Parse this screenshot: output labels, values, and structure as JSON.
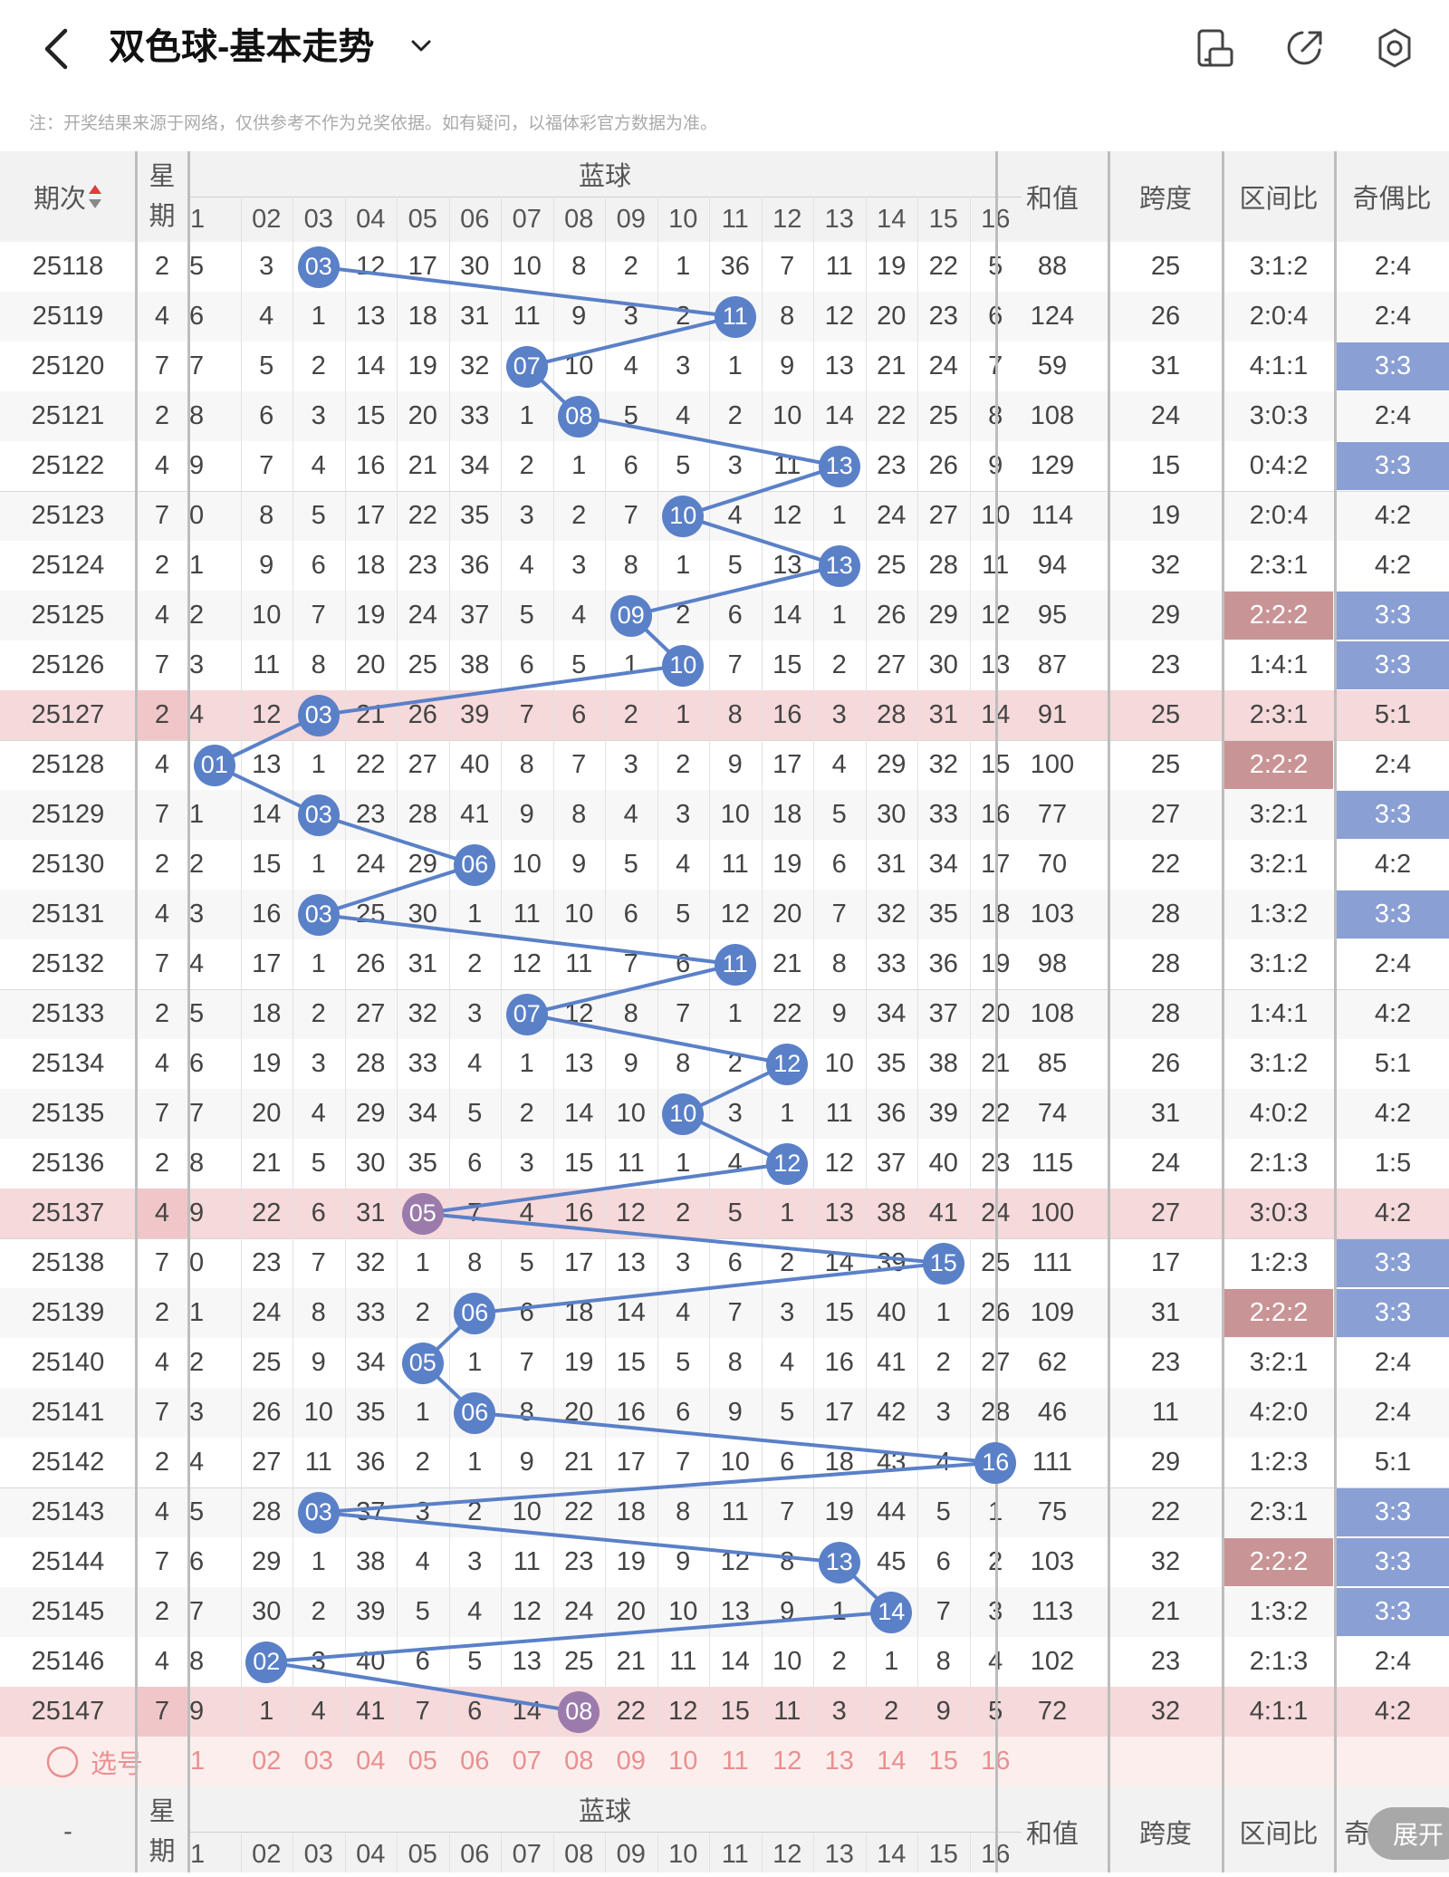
{
  "header": {
    "title": "双色球-基本走势",
    "back_icon": "chevron-left-icon",
    "dropdown_icon": "chevron-down-icon",
    "icons": [
      "phone-rotate-icon",
      "share-icon",
      "settings-icon"
    ]
  },
  "notice": "注：开奖结果来源于网络，仅供参考不作为兑奖依据。如有疑问，以福体彩官方数据为准。",
  "table": {
    "col_period": "期次",
    "col_week": "星期",
    "col_blue_group": "蓝球",
    "blue_numbers": [
      "1",
      "02",
      "03",
      "04",
      "05",
      "06",
      "07",
      "08",
      "09",
      "10",
      "11",
      "12",
      "13",
      "14",
      "15",
      "16"
    ],
    "col_sum": "和值",
    "col_span": "跨度",
    "col_zone": "区间比",
    "col_odd": "奇偶比",
    "rows": [
      {
        "period": "25118",
        "week": "2",
        "miss": [
          "5",
          "3",
          "03",
          "12",
          "17",
          "30",
          "10",
          "8",
          "2",
          "1",
          "36",
          "7",
          "11",
          "19",
          "22",
          "5"
        ],
        "hit": 3,
        "sum": "88",
        "span": "25",
        "zone": "3:1:2",
        "odd": "2:4"
      },
      {
        "period": "25119",
        "week": "4",
        "miss": [
          "6",
          "4",
          "1",
          "13",
          "18",
          "31",
          "11",
          "9",
          "3",
          "2",
          "11",
          "8",
          "12",
          "20",
          "23",
          "6"
        ],
        "hit": 11,
        "sum": "124",
        "span": "26",
        "zone": "2:0:4",
        "odd": "2:4"
      },
      {
        "period": "25120",
        "week": "7",
        "miss": [
          "7",
          "5",
          "2",
          "14",
          "19",
          "32",
          "07",
          "10",
          "4",
          "3",
          "1",
          "9",
          "13",
          "21",
          "24",
          "7"
        ],
        "hit": 7,
        "sum": "59",
        "span": "31",
        "zone": "4:1:1",
        "odd": "3:3"
      },
      {
        "period": "25121",
        "week": "2",
        "miss": [
          "8",
          "6",
          "3",
          "15",
          "20",
          "33",
          "1",
          "08",
          "5",
          "4",
          "2",
          "10",
          "14",
          "22",
          "25",
          "8"
        ],
        "hit": 8,
        "sum": "108",
        "span": "24",
        "zone": "3:0:3",
        "odd": "2:4"
      },
      {
        "period": "25122",
        "week": "4",
        "miss": [
          "9",
          "7",
          "4",
          "16",
          "21",
          "34",
          "2",
          "1",
          "6",
          "5",
          "3",
          "11",
          "13",
          "23",
          "26",
          "9"
        ],
        "hit": 13,
        "sum": "129",
        "span": "15",
        "zone": "0:4:2",
        "odd": "3:3"
      },
      {
        "period": "25123",
        "week": "7",
        "miss": [
          "0",
          "8",
          "5",
          "17",
          "22",
          "35",
          "3",
          "2",
          "7",
          "10",
          "4",
          "12",
          "1",
          "24",
          "27",
          "10"
        ],
        "hit": 10,
        "sum": "114",
        "span": "19",
        "zone": "2:0:4",
        "odd": "4:2"
      },
      {
        "period": "25124",
        "week": "2",
        "miss": [
          "1",
          "9",
          "6",
          "18",
          "23",
          "36",
          "4",
          "3",
          "8",
          "1",
          "5",
          "13",
          "13",
          "25",
          "28",
          "11"
        ],
        "hit": 13,
        "sum": "94",
        "span": "32",
        "zone": "2:3:1",
        "odd": "4:2"
      },
      {
        "period": "25125",
        "week": "4",
        "miss": [
          "2",
          "10",
          "7",
          "19",
          "24",
          "37",
          "5",
          "4",
          "09",
          "2",
          "6",
          "14",
          "1",
          "26",
          "29",
          "12"
        ],
        "hit": 9,
        "sum": "95",
        "span": "29",
        "zone": "2:2:2",
        "odd": "3:3"
      },
      {
        "period": "25126",
        "week": "7",
        "miss": [
          "3",
          "11",
          "8",
          "20",
          "25",
          "38",
          "6",
          "5",
          "1",
          "10",
          "7",
          "15",
          "2",
          "27",
          "30",
          "13"
        ],
        "hit": 10,
        "sum": "87",
        "span": "23",
        "zone": "1:4:1",
        "odd": "3:3"
      },
      {
        "period": "25127",
        "week": "2",
        "miss": [
          "4",
          "12",
          "03",
          "21",
          "26",
          "39",
          "7",
          "6",
          "2",
          "1",
          "8",
          "16",
          "3",
          "28",
          "31",
          "14"
        ],
        "hit": 3,
        "sum": "91",
        "span": "25",
        "zone": "2:3:1",
        "odd": "5:1"
      },
      {
        "period": "25128",
        "week": "4",
        "miss": [
          "01",
          "13",
          "1",
          "22",
          "27",
          "40",
          "8",
          "7",
          "3",
          "2",
          "9",
          "17",
          "4",
          "29",
          "32",
          "15"
        ],
        "hit": 1,
        "sum": "100",
        "span": "25",
        "zone": "2:2:2",
        "odd": "2:4"
      },
      {
        "period": "25129",
        "week": "7",
        "miss": [
          "1",
          "14",
          "03",
          "23",
          "28",
          "41",
          "9",
          "8",
          "4",
          "3",
          "10",
          "18",
          "5",
          "30",
          "33",
          "16"
        ],
        "hit": 3,
        "sum": "77",
        "span": "27",
        "zone": "3:2:1",
        "odd": "3:3"
      },
      {
        "period": "25130",
        "week": "2",
        "miss": [
          "2",
          "15",
          "1",
          "24",
          "29",
          "06",
          "10",
          "9",
          "5",
          "4",
          "11",
          "19",
          "6",
          "31",
          "34",
          "17"
        ],
        "hit": 6,
        "sum": "70",
        "span": "22",
        "zone": "3:2:1",
        "odd": "4:2"
      },
      {
        "period": "25131",
        "week": "4",
        "miss": [
          "3",
          "16",
          "03",
          "25",
          "30",
          "1",
          "11",
          "10",
          "6",
          "5",
          "12",
          "20",
          "7",
          "32",
          "35",
          "18"
        ],
        "hit": 3,
        "sum": "103",
        "span": "28",
        "zone": "1:3:2",
        "odd": "3:3"
      },
      {
        "period": "25132",
        "week": "7",
        "miss": [
          "4",
          "17",
          "1",
          "26",
          "31",
          "2",
          "12",
          "11",
          "7",
          "6",
          "11",
          "21",
          "8",
          "33",
          "36",
          "19"
        ],
        "hit": 11,
        "sum": "98",
        "span": "28",
        "zone": "3:1:2",
        "odd": "2:4"
      },
      {
        "period": "25133",
        "week": "2",
        "miss": [
          "5",
          "18",
          "2",
          "27",
          "32",
          "3",
          "07",
          "12",
          "8",
          "7",
          "1",
          "22",
          "9",
          "34",
          "37",
          "20"
        ],
        "hit": 7,
        "sum": "108",
        "span": "28",
        "zone": "1:4:1",
        "odd": "4:2"
      },
      {
        "period": "25134",
        "week": "4",
        "miss": [
          "6",
          "19",
          "3",
          "28",
          "33",
          "4",
          "1",
          "13",
          "9",
          "8",
          "2",
          "12",
          "10",
          "35",
          "38",
          "21"
        ],
        "hit": 12,
        "sum": "85",
        "span": "26",
        "zone": "3:1:2",
        "odd": "5:1"
      },
      {
        "period": "25135",
        "week": "7",
        "miss": [
          "7",
          "20",
          "4",
          "29",
          "34",
          "5",
          "2",
          "14",
          "10",
          "10",
          "3",
          "1",
          "11",
          "36",
          "39",
          "22"
        ],
        "hit": 10,
        "sum": "74",
        "span": "31",
        "zone": "4:0:2",
        "odd": "4:2"
      },
      {
        "period": "25136",
        "week": "2",
        "miss": [
          "8",
          "21",
          "5",
          "30",
          "35",
          "6",
          "3",
          "15",
          "11",
          "1",
          "4",
          "12",
          "12",
          "37",
          "40",
          "23"
        ],
        "hit": 12,
        "sum": "115",
        "span": "24",
        "zone": "2:1:3",
        "odd": "1:5"
      },
      {
        "period": "25137",
        "week": "4",
        "miss": [
          "9",
          "22",
          "6",
          "31",
          "05",
          "7",
          "4",
          "16",
          "12",
          "2",
          "5",
          "1",
          "13",
          "38",
          "41",
          "24"
        ],
        "hit": 5,
        "sum": "100",
        "span": "27",
        "zone": "3:0:3",
        "odd": "4:2"
      },
      {
        "period": "25138",
        "week": "7",
        "miss": [
          "0",
          "23",
          "7",
          "32",
          "1",
          "8",
          "5",
          "17",
          "13",
          "3",
          "6",
          "2",
          "14",
          "39",
          "15",
          "25"
        ],
        "hit": 15,
        "sum": "111",
        "span": "17",
        "zone": "1:2:3",
        "odd": "3:3"
      },
      {
        "period": "25139",
        "week": "2",
        "miss": [
          "1",
          "24",
          "8",
          "33",
          "2",
          "06",
          "6",
          "18",
          "14",
          "4",
          "7",
          "3",
          "15",
          "40",
          "1",
          "26"
        ],
        "hit": 6,
        "sum": "109",
        "span": "31",
        "zone": "2:2:2",
        "odd": "3:3"
      },
      {
        "period": "25140",
        "week": "4",
        "miss": [
          "2",
          "25",
          "9",
          "34",
          "05",
          "1",
          "7",
          "19",
          "15",
          "5",
          "8",
          "4",
          "16",
          "41",
          "2",
          "27"
        ],
        "hit": 5,
        "sum": "62",
        "span": "23",
        "zone": "3:2:1",
        "odd": "2:4"
      },
      {
        "period": "25141",
        "week": "7",
        "miss": [
          "3",
          "26",
          "10",
          "35",
          "1",
          "06",
          "8",
          "20",
          "16",
          "6",
          "9",
          "5",
          "17",
          "42",
          "3",
          "28"
        ],
        "hit": 6,
        "sum": "46",
        "span": "11",
        "zone": "4:2:0",
        "odd": "2:4"
      },
      {
        "period": "25142",
        "week": "2",
        "miss": [
          "4",
          "27",
          "11",
          "36",
          "2",
          "1",
          "9",
          "21",
          "17",
          "7",
          "10",
          "6",
          "18",
          "43",
          "4",
          "16"
        ],
        "hit": 16,
        "sum": "111",
        "span": "29",
        "zone": "1:2:3",
        "odd": "5:1"
      },
      {
        "period": "25143",
        "week": "4",
        "miss": [
          "5",
          "28",
          "03",
          "37",
          "3",
          "2",
          "10",
          "22",
          "18",
          "8",
          "11",
          "7",
          "19",
          "44",
          "5",
          "1"
        ],
        "hit": 3,
        "sum": "75",
        "span": "22",
        "zone": "2:3:1",
        "odd": "3:3"
      },
      {
        "period": "25144",
        "week": "7",
        "miss": [
          "6",
          "29",
          "1",
          "38",
          "4",
          "3",
          "11",
          "23",
          "19",
          "9",
          "12",
          "8",
          "13",
          "45",
          "6",
          "2"
        ],
        "hit": 13,
        "sum": "103",
        "span": "32",
        "zone": "2:2:2",
        "odd": "3:3"
      },
      {
        "period": "25145",
        "week": "2",
        "miss": [
          "7",
          "30",
          "2",
          "39",
          "5",
          "4",
          "12",
          "24",
          "20",
          "10",
          "13",
          "9",
          "1",
          "14",
          "7",
          "3"
        ],
        "hit": 14,
        "sum": "113",
        "span": "21",
        "zone": "1:3:2",
        "odd": "3:3"
      },
      {
        "period": "25146",
        "week": "4",
        "miss": [
          "8",
          "02",
          "3",
          "40",
          "6",
          "5",
          "13",
          "25",
          "21",
          "11",
          "14",
          "10",
          "2",
          "1",
          "8",
          "4"
        ],
        "hit": 2,
        "sum": "102",
        "span": "23",
        "zone": "2:1:3",
        "odd": "2:4"
      },
      {
        "period": "25147",
        "week": "7",
        "miss": [
          "9",
          "1",
          "4",
          "41",
          "7",
          "6",
          "14",
          "08",
          "22",
          "12",
          "15",
          "11",
          "3",
          "2",
          "9",
          "5"
        ],
        "hit": 8,
        "sum": "72",
        "span": "32",
        "zone": "4:1:1",
        "odd": "4:2"
      }
    ]
  },
  "select_row": {
    "label": "选号",
    "icon": "circle-select-icon",
    "numbers": [
      "1",
      "02",
      "03",
      "04",
      "05",
      "06",
      "07",
      "08",
      "09",
      "10",
      "11",
      "12",
      "13",
      "14",
      "15",
      "16"
    ]
  },
  "footer": {
    "dash": "-",
    "week": "星期",
    "blue_group": "蓝球",
    "sum": "和值",
    "span": "跨度",
    "zone": "区间比",
    "odd_partial": "奇",
    "expand_label": "展开"
  },
  "colors": {
    "ball": "#5a80c8",
    "ball_pink": "#9a7bab",
    "row_pink": "#f6d9da",
    "odd_highlight": "#8a9fd4",
    "zone_highlight": "#c99496",
    "select_text": "#e8908f"
  }
}
